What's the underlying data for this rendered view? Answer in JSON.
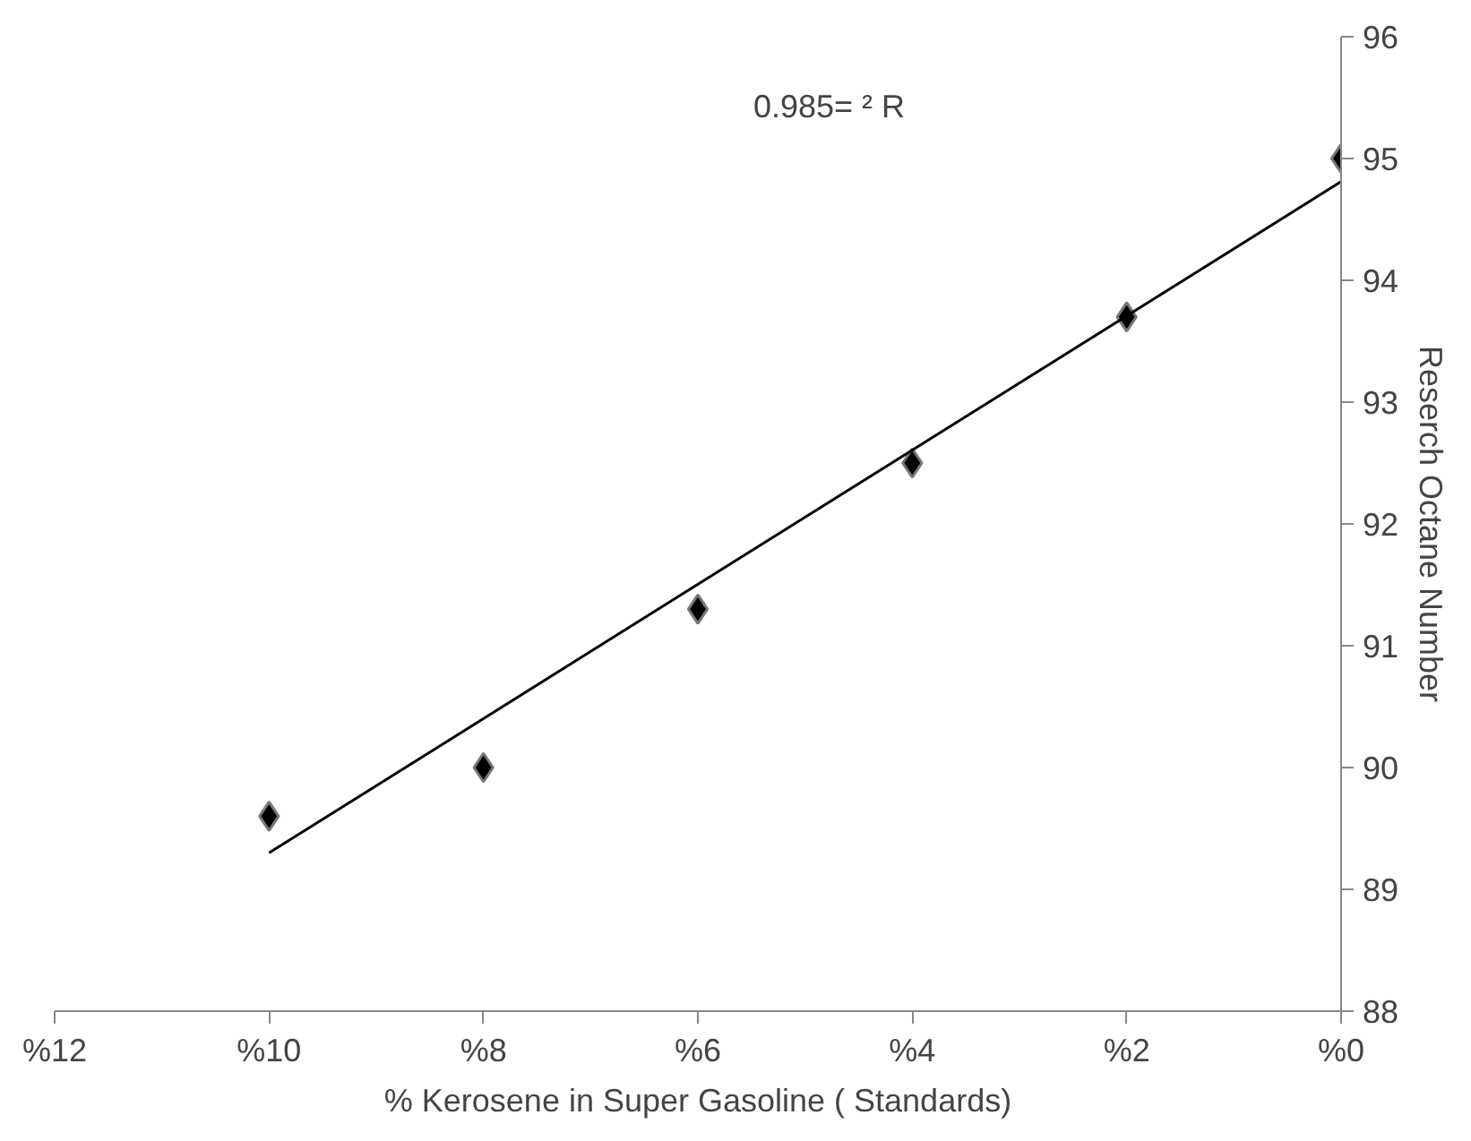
{
  "chart_data": {
    "type": "scatter",
    "xlabel": "% Kerosene in Super Gasoline ( Standards)",
    "ylabel": "Reserch Octane Number",
    "x": [
      10,
      8,
      6,
      4,
      2,
      0
    ],
    "series": [
      {
        "color": "#000000",
        "marker": "diamond",
        "values": [
          89.6,
          90.0,
          91.3,
          92.5,
          93.7,
          95.0
        ]
      },
      {
        "type": "line",
        "color": "#000000",
        "x": [
          10,
          0
        ],
        "values": [
          89.3,
          94.81
        ]
      }
    ],
    "xlim": [
      12,
      0
    ],
    "ylim": [
      88,
      96
    ],
    "xticks": [
      {
        "value": 12,
        "label": "%12"
      },
      {
        "value": 10,
        "label": "%10"
      },
      {
        "value": 8,
        "label": "%8"
      },
      {
        "value": 6,
        "label": "%6"
      },
      {
        "value": 4,
        "label": "%4"
      },
      {
        "value": 2,
        "label": "%2"
      },
      {
        "value": 0,
        "label": "%0"
      }
    ],
    "yticks": [
      88,
      89,
      90,
      91,
      92,
      93,
      94,
      95,
      96
    ],
    "annotations": [
      "0.985= ² R"
    ],
    "grid": false
  }
}
